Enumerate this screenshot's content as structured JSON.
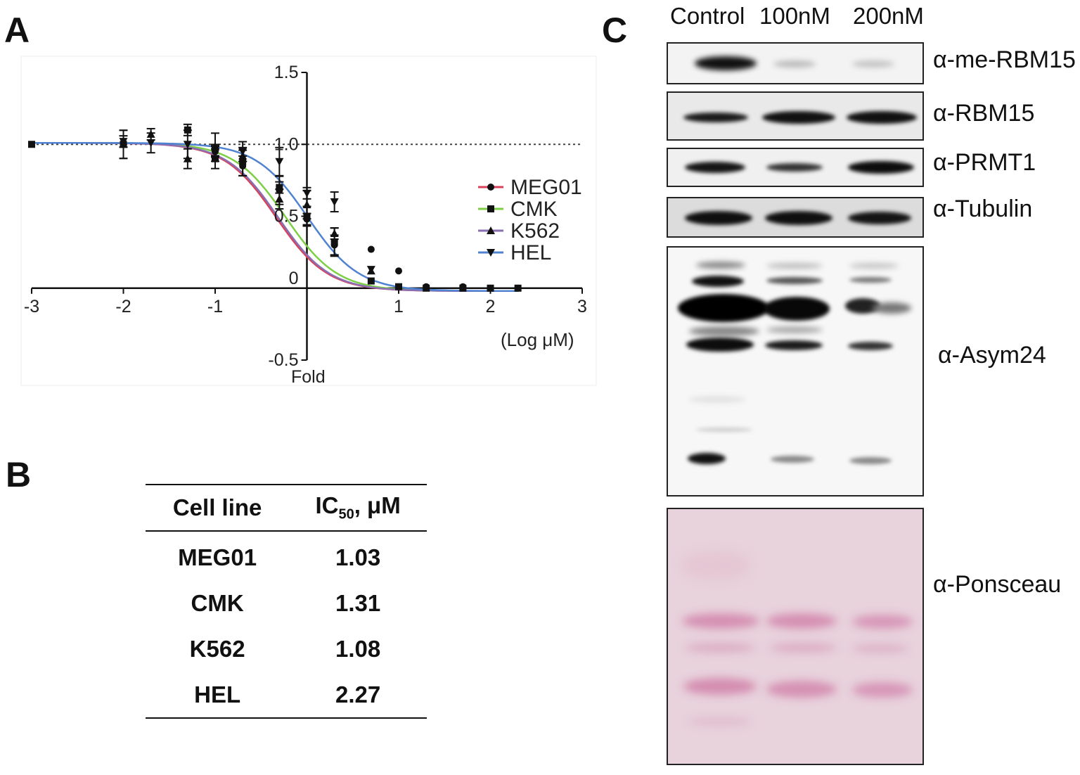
{
  "panel_letters": {
    "a": "A",
    "b": "B",
    "c": "C"
  },
  "chart_data": {
    "type": "line",
    "xlabel": "(Log μM)",
    "ylabel": "Fold",
    "xlim": [
      -3,
      3
    ],
    "ylim": [
      -0.5,
      1.5
    ],
    "x_ticks": [
      "-3",
      "-2",
      "-1",
      "1",
      "2",
      "3"
    ],
    "y_ticks": [
      "1.5",
      "1.0",
      "0.5",
      "0",
      "-0.5"
    ],
    "reference_line": 1.0,
    "grid": false,
    "legend_position": "right",
    "series": [
      {
        "name": "MEG01",
        "color": "#d9415a",
        "marker": "circle",
        "x": [
          -1.0,
          -0.7,
          -0.3,
          0.0,
          0.3,
          0.7,
          1.0,
          1.3,
          1.7,
          2.0,
          2.3
        ],
        "y": [
          0.95,
          0.85,
          0.68,
          0.48,
          0.3,
          0.27,
          0.12,
          0.01,
          0.01,
          0.0,
          0.0
        ],
        "ic50": 1.03
      },
      {
        "name": "CMK",
        "color": "#7ccf45",
        "marker": "square",
        "x": [
          -3.0,
          -2.0,
          -1.3,
          -1.0,
          -0.7,
          -0.3,
          0.0,
          0.3,
          0.7,
          1.0,
          1.3,
          1.7,
          2.0,
          2.3
        ],
        "y": [
          1.0,
          1.0,
          1.1,
          0.9,
          0.88,
          0.7,
          0.5,
          0.32,
          0.05,
          0.01,
          0.0,
          0.0,
          0.0,
          0.0
        ],
        "ic50": 1.31
      },
      {
        "name": "K562",
        "color": "#8a6fb3",
        "marker": "triangle-up",
        "x": [
          -2.0,
          -1.7,
          -1.3,
          -1.0,
          -0.7,
          -0.3,
          0.0,
          0.3,
          0.7
        ],
        "y": [
          1.0,
          1.07,
          0.9,
          0.98,
          0.92,
          0.62,
          0.58,
          0.38,
          0.12
        ],
        "ic50": 1.08
      },
      {
        "name": "HEL",
        "color": "#4f83d1",
        "marker": "triangle-down",
        "x": [
          -2.0,
          -1.7,
          -1.3,
          -1.0,
          -0.7,
          -0.3,
          0.0,
          0.3,
          0.7
        ],
        "y": [
          1.02,
          1.01,
          1.0,
          0.96,
          0.95,
          0.88,
          0.66,
          0.6,
          0.13
        ],
        "ic50": 2.27
      }
    ]
  },
  "table": {
    "headers": {
      "cell_line": "Cell line",
      "ic50_main": "IC",
      "ic50_sub": "50",
      "ic50_unit": ", μM"
    },
    "rows": [
      {
        "cell_line": "MEG01",
        "ic50": "1.03"
      },
      {
        "cell_line": "CMK",
        "ic50": "1.31"
      },
      {
        "cell_line": "K562",
        "ic50": "1.08"
      },
      {
        "cell_line": "HEL",
        "ic50": "2.27"
      }
    ]
  },
  "blot": {
    "lanes": [
      "Control",
      "100nM",
      "200nM"
    ],
    "labels": {
      "me_rbm15": "α-me-RBM15",
      "rbm15": "α-RBM15",
      "prmt1": "α-PRMT1",
      "tubulin": "α-Tubulin",
      "asym24": "α-Asym24",
      "ponsceau": "α-Ponsceau"
    }
  }
}
